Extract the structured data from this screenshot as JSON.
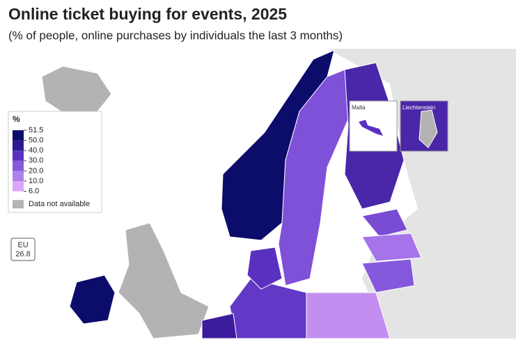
{
  "header": {
    "title": "Online ticket buying for events, 2025",
    "subtitle": "(% of people, online purchases by individuals the last 3 months)"
  },
  "legend": {
    "title": "%",
    "breaks": [
      51.5,
      {
        "value": 50,
        "label": "50.0"
      },
      {
        "value": 40,
        "label": "40.0"
      },
      {
        "value": 30,
        "label": "30.0"
      },
      {
        "value": 20,
        "label": "20.0"
      },
      {
        "value": 10,
        "label": "10.0"
      },
      {
        "value": 6,
        "label": "6.0"
      }
    ],
    "colors": [
      "#0c0c6b",
      "#2c1a8e",
      "#5a30c0",
      "#8558dc",
      "#ad80ee",
      "#dca6f8"
    ],
    "na_label": "Data not available",
    "na_color": "#b3b3b3"
  },
  "eu_box": {
    "label": "EU",
    "value": "26.8"
  },
  "insets": {
    "malta": "Malta",
    "liechtenstein": "Liechtenstein"
  }
}
